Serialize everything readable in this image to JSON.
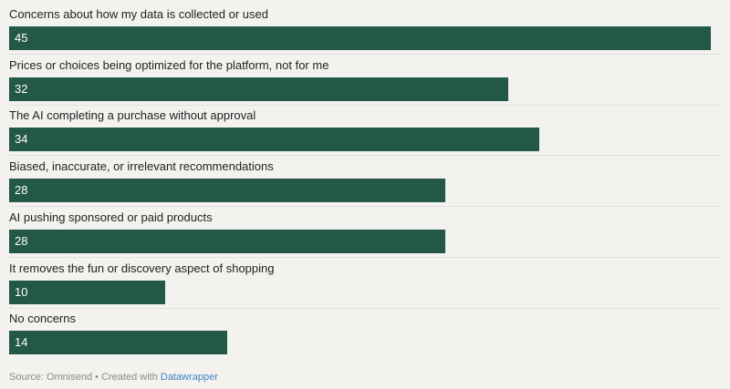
{
  "chart_data": {
    "type": "bar",
    "orientation": "horizontal",
    "categories": [
      "Concerns about how my data is collected or used",
      "Prices or choices being optimized for the platform, not for me",
      "The AI completing a purchase without approval",
      "Biased, inaccurate, or irrelevant recommendations",
      "AI pushing sponsored or paid products",
      "It removes the fun or discovery aspect of shopping",
      "No concerns"
    ],
    "values": [
      45,
      32,
      34,
      28,
      28,
      10,
      14
    ],
    "xlim": [
      0,
      45
    ],
    "bar_color": "#235748",
    "grid": false
  },
  "footer": {
    "source": "Source: Omnisend • Created with ",
    "link": "Datawrapper"
  }
}
